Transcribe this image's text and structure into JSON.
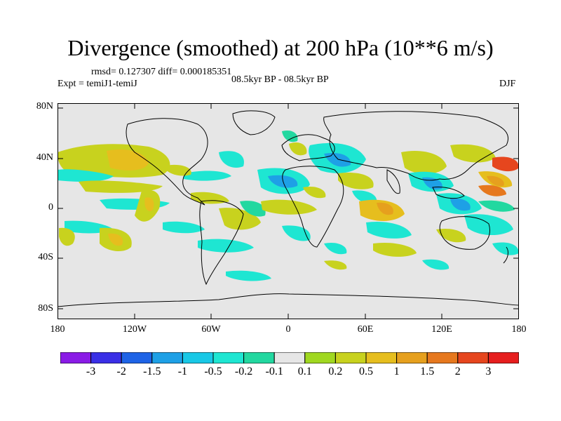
{
  "title": "Divergence (smoothed) at 200 hPa (10**6 m/s)",
  "stats": "rmsd= 0.127307 diff= 0.000185351",
  "expt": "Expt = temiJ1-temiJ",
  "period": "08.5kyr BP - 08.5kyr BP",
  "season": "DJF",
  "lat_labels": [
    "80N",
    "40N",
    "0",
    "40S",
    "80S"
  ],
  "lon_labels": [
    "180",
    "120W",
    "60W",
    "0",
    "60E",
    "120E",
    "180"
  ],
  "colorbar": {
    "colors": [
      "#8a1be6",
      "#3a2fe6",
      "#1e63e6",
      "#1ea0e6",
      "#18c8e6",
      "#1ee6d2",
      "#22d8a0",
      "#e6e6e6",
      "#a0d820",
      "#c8d21e",
      "#e6be1e",
      "#e6a01e",
      "#e6781e",
      "#e6461e",
      "#e61e1e"
    ],
    "labels": [
      "-3",
      "-2",
      "-1.5",
      "-1",
      "-0.5",
      "-0.2",
      "-0.1",
      "0.1",
      "0.2",
      "0.5",
      "1",
      "1.5",
      "2",
      "3"
    ]
  }
}
